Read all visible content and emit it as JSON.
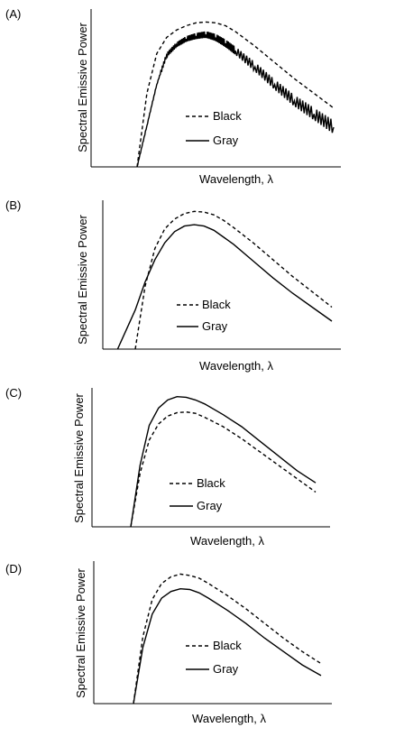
{
  "chart_data": [
    {
      "panel": "(A)",
      "type": "line",
      "xlabel": "Wavelength, λ",
      "ylabel": "Spectral Emissive Power",
      "grid": false,
      "legend_position": "center-right",
      "series": [
        {
          "name": "Black",
          "style": "dashed",
          "points": [
            [
              0.0,
              0.0
            ],
            [
              0.05,
              0.5
            ],
            [
              0.1,
              0.77
            ],
            [
              0.15,
              0.88
            ],
            [
              0.2,
              0.93
            ],
            [
              0.25,
              0.96
            ],
            [
              0.3,
              0.98
            ],
            [
              0.35,
              0.985
            ],
            [
              0.4,
              0.98
            ],
            [
              0.45,
              0.96
            ],
            [
              0.5,
              0.92
            ],
            [
              0.6,
              0.82
            ],
            [
              0.7,
              0.71
            ],
            [
              0.8,
              0.6
            ],
            [
              0.9,
              0.5
            ],
            [
              1.0,
              0.4
            ]
          ]
        },
        {
          "name": "Gray",
          "style": "solid",
          "noisy": true,
          "points": [
            [
              0.0,
              0.0
            ],
            [
              0.05,
              0.28
            ],
            [
              0.1,
              0.56
            ],
            [
              0.15,
              0.76
            ],
            [
              0.2,
              0.83
            ],
            [
              0.25,
              0.87
            ],
            [
              0.3,
              0.89
            ],
            [
              0.35,
              0.9
            ],
            [
              0.4,
              0.88
            ],
            [
              0.45,
              0.84
            ],
            [
              0.5,
              0.79
            ],
            [
              0.6,
              0.68
            ],
            [
              0.7,
              0.56
            ],
            [
              0.8,
              0.45
            ],
            [
              0.9,
              0.36
            ],
            [
              1.0,
              0.27
            ]
          ]
        }
      ]
    },
    {
      "panel": "(B)",
      "type": "line",
      "xlabel": "Wavelength, λ",
      "ylabel": "Spectral Emissive Power",
      "grid": false,
      "legend_position": "center-right",
      "series": [
        {
          "name": "Black",
          "style": "dashed",
          "points": [
            [
              0.0,
              0.0
            ],
            [
              0.05,
              0.45
            ],
            [
              0.1,
              0.72
            ],
            [
              0.15,
              0.86
            ],
            [
              0.2,
              0.93
            ],
            [
              0.25,
              0.97
            ],
            [
              0.3,
              0.985
            ],
            [
              0.35,
              0.98
            ],
            [
              0.4,
              0.96
            ],
            [
              0.45,
              0.92
            ],
            [
              0.5,
              0.87
            ],
            [
              0.6,
              0.76
            ],
            [
              0.7,
              0.64
            ],
            [
              0.8,
              0.52
            ],
            [
              0.9,
              0.41
            ],
            [
              1.0,
              0.3
            ]
          ]
        },
        {
          "name": "Gray",
          "style": "solid",
          "points": [
            [
              -0.09,
              0.0
            ],
            [
              0.0,
              0.28
            ],
            [
              0.05,
              0.48
            ],
            [
              0.1,
              0.64
            ],
            [
              0.15,
              0.76
            ],
            [
              0.2,
              0.84
            ],
            [
              0.25,
              0.88
            ],
            [
              0.3,
              0.89
            ],
            [
              0.35,
              0.88
            ],
            [
              0.4,
              0.85
            ],
            [
              0.45,
              0.8
            ],
            [
              0.5,
              0.75
            ],
            [
              0.6,
              0.63
            ],
            [
              0.7,
              0.51
            ],
            [
              0.8,
              0.4
            ],
            [
              0.9,
              0.3
            ],
            [
              1.0,
              0.2
            ]
          ]
        }
      ]
    },
    {
      "panel": "(C)",
      "type": "line",
      "xlabel": "Wavelength, λ",
      "ylabel": "Spectral Emissive Power",
      "grid": false,
      "legend_position": "center-right",
      "series": [
        {
          "name": "Black",
          "style": "dashed",
          "points": [
            [
              0.0,
              0.0
            ],
            [
              0.05,
              0.4
            ],
            [
              0.1,
              0.65
            ],
            [
              0.15,
              0.77
            ],
            [
              0.2,
              0.83
            ],
            [
              0.25,
              0.855
            ],
            [
              0.3,
              0.86
            ],
            [
              0.35,
              0.85
            ],
            [
              0.4,
              0.82
            ],
            [
              0.5,
              0.75
            ],
            [
              0.6,
              0.66
            ],
            [
              0.7,
              0.56
            ],
            [
              0.8,
              0.46
            ],
            [
              0.9,
              0.36
            ],
            [
              1.0,
              0.26
            ]
          ]
        },
        {
          "name": "Gray",
          "style": "solid",
          "points": [
            [
              0.0,
              0.0
            ],
            [
              0.05,
              0.46
            ],
            [
              0.1,
              0.76
            ],
            [
              0.15,
              0.89
            ],
            [
              0.2,
              0.95
            ],
            [
              0.25,
              0.975
            ],
            [
              0.3,
              0.97
            ],
            [
              0.35,
              0.95
            ],
            [
              0.4,
              0.92
            ],
            [
              0.5,
              0.84
            ],
            [
              0.6,
              0.75
            ],
            [
              0.7,
              0.64
            ],
            [
              0.8,
              0.53
            ],
            [
              0.9,
              0.42
            ],
            [
              1.0,
              0.33
            ]
          ]
        }
      ]
    },
    {
      "panel": "(D)",
      "type": "line",
      "xlabel": "Wavelength, λ",
      "ylabel": "Spectral Emissive Power",
      "grid": false,
      "legend_position": "center-right",
      "series": [
        {
          "name": "Black",
          "style": "dashed",
          "points": [
            [
              0.0,
              0.0
            ],
            [
              0.05,
              0.5
            ],
            [
              0.1,
              0.78
            ],
            [
              0.15,
              0.9
            ],
            [
              0.2,
              0.95
            ],
            [
              0.25,
              0.97
            ],
            [
              0.3,
              0.96
            ],
            [
              0.35,
              0.94
            ],
            [
              0.4,
              0.9
            ],
            [
              0.5,
              0.81
            ],
            [
              0.6,
              0.71
            ],
            [
              0.7,
              0.6
            ],
            [
              0.8,
              0.49
            ],
            [
              0.9,
              0.39
            ],
            [
              1.0,
              0.3
            ]
          ]
        },
        {
          "name": "Gray",
          "style": "solid",
          "points": [
            [
              0.0,
              0.0
            ],
            [
              0.05,
              0.42
            ],
            [
              0.1,
              0.67
            ],
            [
              0.15,
              0.79
            ],
            [
              0.2,
              0.84
            ],
            [
              0.25,
              0.86
            ],
            [
              0.3,
              0.855
            ],
            [
              0.35,
              0.83
            ],
            [
              0.4,
              0.79
            ],
            [
              0.5,
              0.7
            ],
            [
              0.6,
              0.6
            ],
            [
              0.7,
              0.49
            ],
            [
              0.8,
              0.39
            ],
            [
              0.9,
              0.29
            ],
            [
              1.0,
              0.21
            ]
          ]
        }
      ]
    }
  ]
}
